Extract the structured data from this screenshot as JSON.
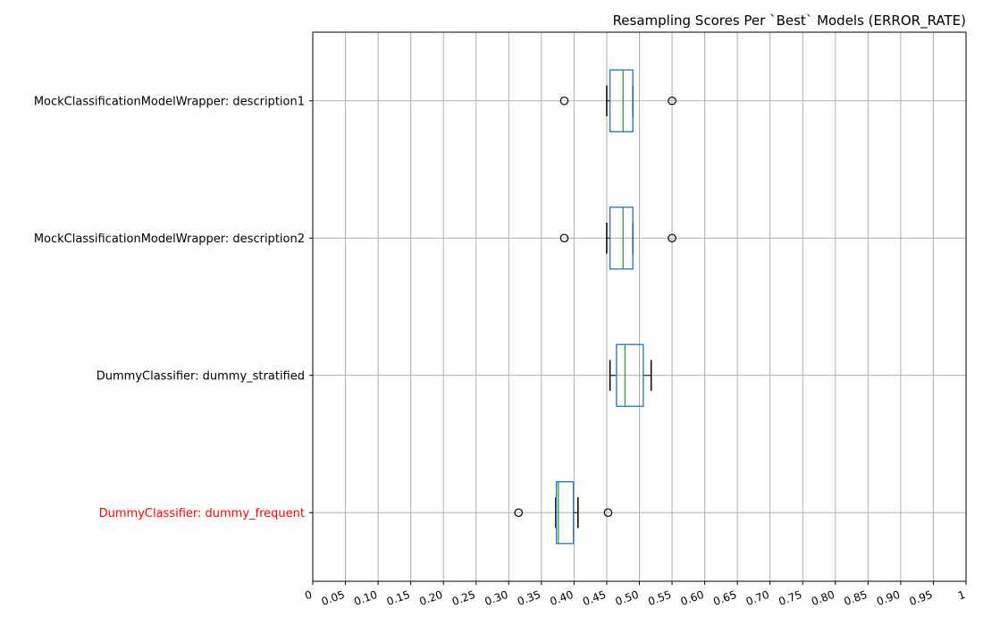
{
  "chart_data": {
    "type": "boxplot",
    "orientation": "horizontal",
    "title": "Resampling Scores Per `Best` Models (ERROR_RATE)",
    "xlabel": "",
    "ylabel": "",
    "xlim": [
      0,
      1
    ],
    "grid": true,
    "x_ticks": [
      0,
      0.05,
      0.1,
      0.15,
      0.2,
      0.25,
      0.3,
      0.35,
      0.4,
      0.45,
      0.5,
      0.55,
      0.6,
      0.65,
      0.7,
      0.75,
      0.8,
      0.85,
      0.9,
      0.95,
      1
    ],
    "x_tick_labels": [
      "0",
      "0.05",
      "0.10",
      "0.15",
      "0.20",
      "0.25",
      "0.30",
      "0.35",
      "0.40",
      "0.45",
      "0.50",
      "0.55",
      "0.60",
      "0.65",
      "0.70",
      "0.75",
      "0.80",
      "0.85",
      "0.90",
      "0.95",
      "1"
    ],
    "categories": [
      "MockClassificationModelWrapper: description1",
      "MockClassificationModelWrapper: description2",
      "DummyClassifier: dummy_stratified",
      "DummyClassifier: dummy_frequent"
    ],
    "highlighted_category": "DummyClassifier: dummy_frequent",
    "boxes": [
      {
        "whisker_low": 0.45,
        "q1": 0.455,
        "median": 0.475,
        "q3": 0.49,
        "whisker_high": 0.49,
        "outliers": [
          0.385,
          0.55
        ]
      },
      {
        "whisker_low": 0.45,
        "q1": 0.455,
        "median": 0.475,
        "q3": 0.49,
        "whisker_high": 0.49,
        "outliers": [
          0.385,
          0.55
        ]
      },
      {
        "whisker_low": 0.455,
        "q1": 0.465,
        "median": 0.478,
        "q3": 0.506,
        "whisker_high": 0.518,
        "outliers": []
      },
      {
        "whisker_low": 0.372,
        "q1": 0.373,
        "median": 0.376,
        "q3": 0.399,
        "whisker_high": 0.406,
        "outliers": [
          0.315,
          0.452
        ]
      }
    ],
    "colors": {
      "box": "#1f77b4",
      "median": "#2ca02c",
      "whisker": "#000000",
      "grid": "#b0b0b0",
      "highlight_label": "#ff0000",
      "label": "#000000"
    }
  }
}
